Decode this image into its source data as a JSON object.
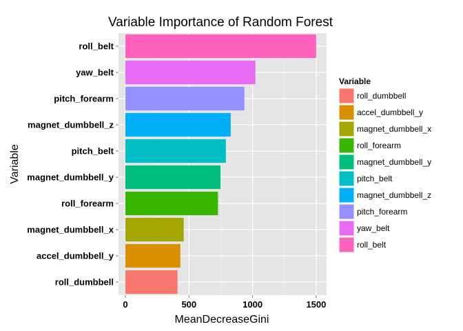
{
  "chart_data": {
    "type": "bar",
    "orientation": "horizontal",
    "title": "Variable Importance of Random Forest",
    "xlabel": "MeanDecreaseGini",
    "ylabel": "Variable",
    "xlim": [
      0,
      1580
    ],
    "xticks": [
      "0",
      "500",
      "1000",
      "1500"
    ],
    "xtick_values": [
      0,
      500,
      1000,
      1500
    ],
    "grid": true,
    "legend_placement": "right",
    "legend_title": "Variable",
    "categories": [
      "roll_dumbbell",
      "accel_dumbbell_y",
      "magnet_dumbbell_x",
      "roll_forearm",
      "magnet_dumbbell_y",
      "pitch_belt",
      "magnet_dumbbell_z",
      "pitch_forearm",
      "yaw_belt",
      "roll_belt"
    ],
    "values": [
      410,
      432,
      458,
      728,
      748,
      790,
      828,
      935,
      1022,
      1500
    ],
    "colors": [
      "#F8766D",
      "#D89000",
      "#A3A500",
      "#39B600",
      "#00BF7D",
      "#00BFC4",
      "#00B0F6",
      "#9590FF",
      "#E76BF3",
      "#FF62BC"
    ]
  }
}
